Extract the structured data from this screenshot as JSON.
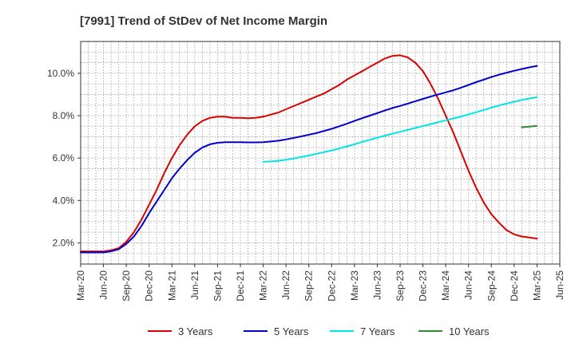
{
  "chart_data": {
    "type": "line",
    "title": "[7991]  Trend of StDev of Net Income Margin",
    "xlabel": "",
    "ylabel": "",
    "x_tick_labels": [
      "Mar-20",
      "Jun-20",
      "Sep-20",
      "Dec-20",
      "Mar-21",
      "Jun-21",
      "Sep-21",
      "Dec-21",
      "Mar-22",
      "Jun-22",
      "Sep-22",
      "Dec-22",
      "Mar-23",
      "Jun-23",
      "Sep-23",
      "Dec-23",
      "Mar-24",
      "Jun-24",
      "Sep-24",
      "Dec-24",
      "Mar-25",
      "Jun-25"
    ],
    "y_ticks": [
      2.0,
      4.0,
      6.0,
      8.0,
      10.0
    ],
    "y_tick_labels": [
      "2.0%",
      "4.0%",
      "6.0%",
      "8.0%",
      "10.0%"
    ],
    "ylim": [
      1.0,
      11.5
    ],
    "grid": true,
    "legend_position": "bottom",
    "series": [
      {
        "name": "3 Years",
        "color": "#dd0000",
        "x": [
          "Mar-20",
          "Apr-20",
          "May-20",
          "Jun-20",
          "Jul-20",
          "Aug-20",
          "Sep-20",
          "Oct-20",
          "Nov-20",
          "Dec-20",
          "Jan-21",
          "Feb-21",
          "Mar-21",
          "Apr-21",
          "May-21",
          "Jun-21",
          "Jul-21",
          "Aug-21",
          "Sep-21",
          "Oct-21",
          "Nov-21",
          "Dec-21",
          "Jan-22",
          "Feb-22",
          "Mar-22",
          "Apr-22",
          "May-22",
          "Jun-22",
          "Jul-22",
          "Aug-22",
          "Sep-22",
          "Oct-22",
          "Nov-22",
          "Dec-22",
          "Jan-23",
          "Feb-23",
          "Mar-23",
          "Apr-23",
          "May-23",
          "Jun-23",
          "Jul-23",
          "Aug-23",
          "Sep-23",
          "Oct-23",
          "Nov-23",
          "Dec-23",
          "Jan-24",
          "Feb-24",
          "Mar-24",
          "Apr-24",
          "May-24",
          "Jun-24",
          "Jul-24",
          "Aug-24",
          "Sep-24",
          "Oct-24",
          "Nov-24",
          "Dec-24",
          "Jan-25",
          "Feb-25",
          "Mar-25"
        ],
        "values": [
          1.6,
          1.6,
          1.6,
          1.6,
          1.65,
          1.75,
          2.05,
          2.5,
          3.1,
          3.8,
          4.5,
          5.3,
          6.0,
          6.6,
          7.1,
          7.5,
          7.75,
          7.9,
          7.95,
          7.95,
          7.9,
          7.9,
          7.88,
          7.9,
          7.95,
          8.05,
          8.15,
          8.3,
          8.45,
          8.6,
          8.75,
          8.9,
          9.05,
          9.25,
          9.45,
          9.7,
          9.9,
          10.1,
          10.3,
          10.5,
          10.7,
          10.82,
          10.85,
          10.75,
          10.5,
          10.1,
          9.5,
          8.8,
          8.0,
          7.2,
          6.3,
          5.4,
          4.6,
          3.9,
          3.35,
          2.95,
          2.6,
          2.4,
          2.3,
          2.25,
          2.2
        ]
      },
      {
        "name": "5 Years",
        "color": "#0000cc",
        "x": [
          "Mar-20",
          "Apr-20",
          "May-20",
          "Jun-20",
          "Jul-20",
          "Aug-20",
          "Sep-20",
          "Oct-20",
          "Nov-20",
          "Dec-20",
          "Jan-21",
          "Feb-21",
          "Mar-21",
          "Apr-21",
          "May-21",
          "Jun-21",
          "Jul-21",
          "Aug-21",
          "Sep-21",
          "Oct-21",
          "Nov-21",
          "Dec-21",
          "Jan-22",
          "Feb-22",
          "Mar-22",
          "Apr-22",
          "May-22",
          "Jun-22",
          "Jul-22",
          "Aug-22",
          "Sep-22",
          "Oct-22",
          "Nov-22",
          "Dec-22",
          "Jan-23",
          "Feb-23",
          "Mar-23",
          "Apr-23",
          "May-23",
          "Jun-23",
          "Jul-23",
          "Aug-23",
          "Sep-23",
          "Oct-23",
          "Nov-23",
          "Dec-23",
          "Jan-24",
          "Feb-24",
          "Mar-24",
          "Apr-24",
          "May-24",
          "Jun-24",
          "Jul-24",
          "Aug-24",
          "Sep-24",
          "Oct-24",
          "Nov-24",
          "Dec-24",
          "Jan-25",
          "Feb-25",
          "Mar-25"
        ],
        "values": [
          1.55,
          1.55,
          1.55,
          1.55,
          1.6,
          1.7,
          1.95,
          2.3,
          2.8,
          3.4,
          3.95,
          4.5,
          5.05,
          5.5,
          5.9,
          6.25,
          6.5,
          6.65,
          6.72,
          6.75,
          6.75,
          6.75,
          6.74,
          6.74,
          6.75,
          6.78,
          6.82,
          6.88,
          6.95,
          7.02,
          7.1,
          7.18,
          7.28,
          7.38,
          7.5,
          7.62,
          7.75,
          7.88,
          8.0,
          8.12,
          8.25,
          8.36,
          8.46,
          8.57,
          8.68,
          8.79,
          8.9,
          9.0,
          9.1,
          9.2,
          9.32,
          9.45,
          9.58,
          9.7,
          9.82,
          9.93,
          10.03,
          10.12,
          10.2,
          10.28,
          10.35
        ]
      },
      {
        "name": "7 Years",
        "color": "#00e5e5",
        "x": [
          "Mar-22",
          "Apr-22",
          "May-22",
          "Jun-22",
          "Jul-22",
          "Aug-22",
          "Sep-22",
          "Oct-22",
          "Nov-22",
          "Dec-22",
          "Jan-23",
          "Feb-23",
          "Mar-23",
          "Apr-23",
          "May-23",
          "Jun-23",
          "Jul-23",
          "Aug-23",
          "Sep-23",
          "Oct-23",
          "Nov-23",
          "Dec-23",
          "Jan-24",
          "Feb-24",
          "Mar-24",
          "Apr-24",
          "May-24",
          "Jun-24",
          "Jul-24",
          "Aug-24",
          "Sep-24",
          "Oct-24",
          "Nov-24",
          "Dec-24",
          "Jan-25",
          "Feb-25",
          "Mar-25"
        ],
        "values": [
          5.82,
          5.84,
          5.87,
          5.92,
          5.98,
          6.05,
          6.12,
          6.2,
          6.28,
          6.36,
          6.45,
          6.55,
          6.65,
          6.76,
          6.86,
          6.96,
          7.06,
          7.15,
          7.24,
          7.33,
          7.42,
          7.51,
          7.6,
          7.69,
          7.78,
          7.87,
          7.96,
          8.06,
          8.16,
          8.27,
          8.38,
          8.48,
          8.57,
          8.66,
          8.74,
          8.81,
          8.87
        ]
      },
      {
        "name": "10 Years",
        "color": "#2e8b2e",
        "x": [
          "Jan-25",
          "Feb-25",
          "Mar-25"
        ],
        "values": [
          7.45,
          7.48,
          7.52
        ]
      }
    ]
  }
}
